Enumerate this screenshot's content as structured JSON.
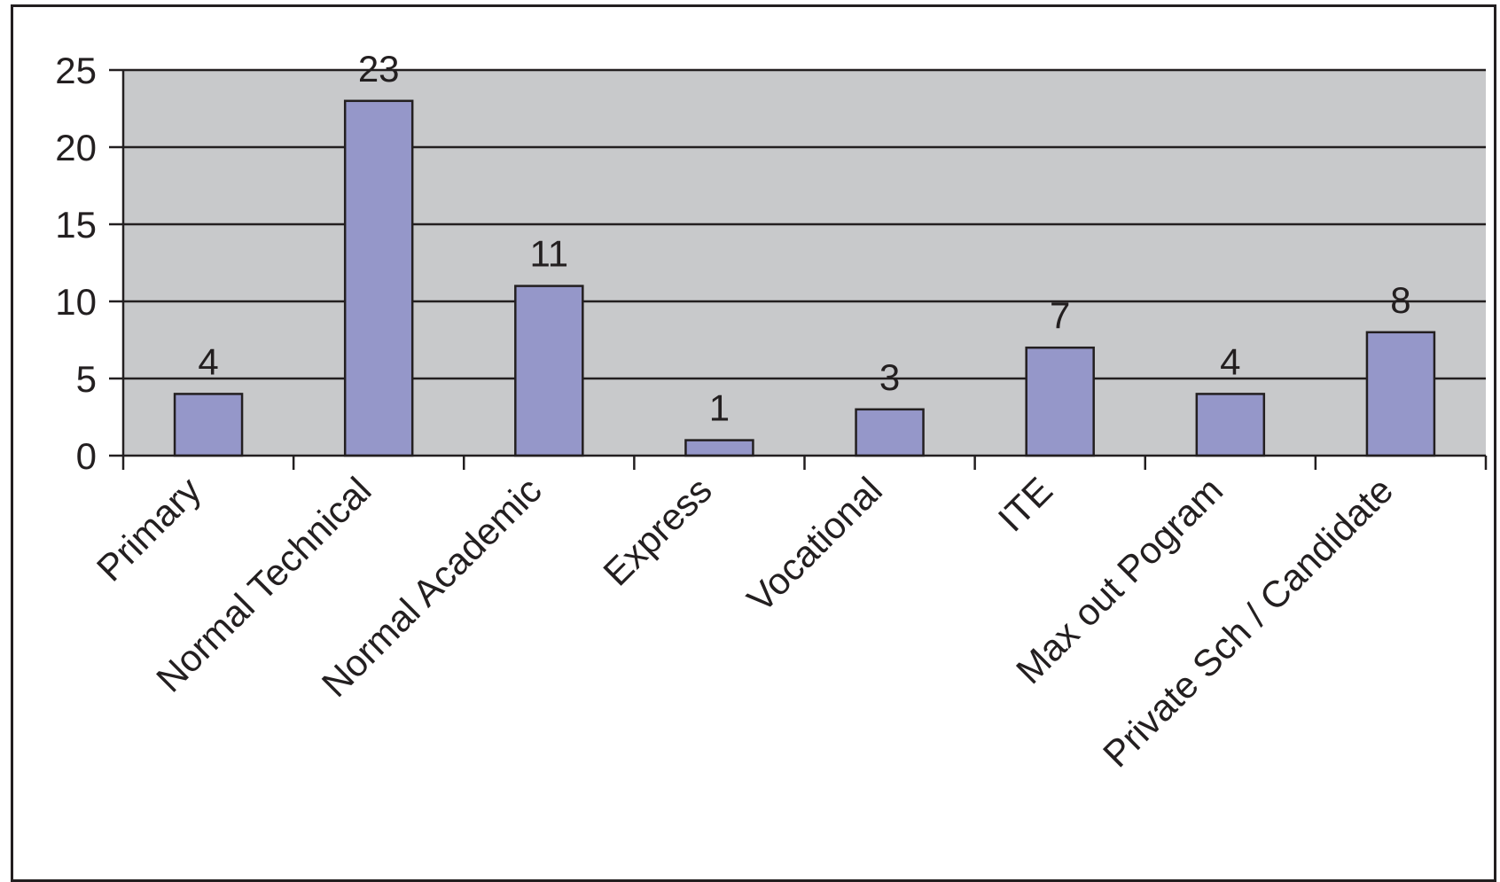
{
  "chart_data": {
    "type": "bar",
    "categories": [
      "Primary",
      "Normal Technical",
      "Normal Academic",
      "Express",
      "Vocational",
      "ITE",
      "Max out Pogram",
      "Private Sch / Candidate"
    ],
    "values": [
      4,
      23,
      11,
      1,
      3,
      7,
      4,
      8
    ],
    "data_labels": [
      "4",
      "23",
      "11",
      "1",
      "3",
      "7",
      "4",
      "8"
    ],
    "title": "",
    "xlabel": "",
    "ylabel": "",
    "ylim": [
      0,
      25
    ],
    "yticks": [
      "0",
      "5",
      "10",
      "15",
      "20",
      "25"
    ],
    "grid": true,
    "legend": "none",
    "colors": {
      "bar_fill": "#9597c9",
      "bar_stroke": "#231f20",
      "plot_background": "#c8c9cb",
      "gridline": "#231f20",
      "text": "#231f20"
    }
  }
}
